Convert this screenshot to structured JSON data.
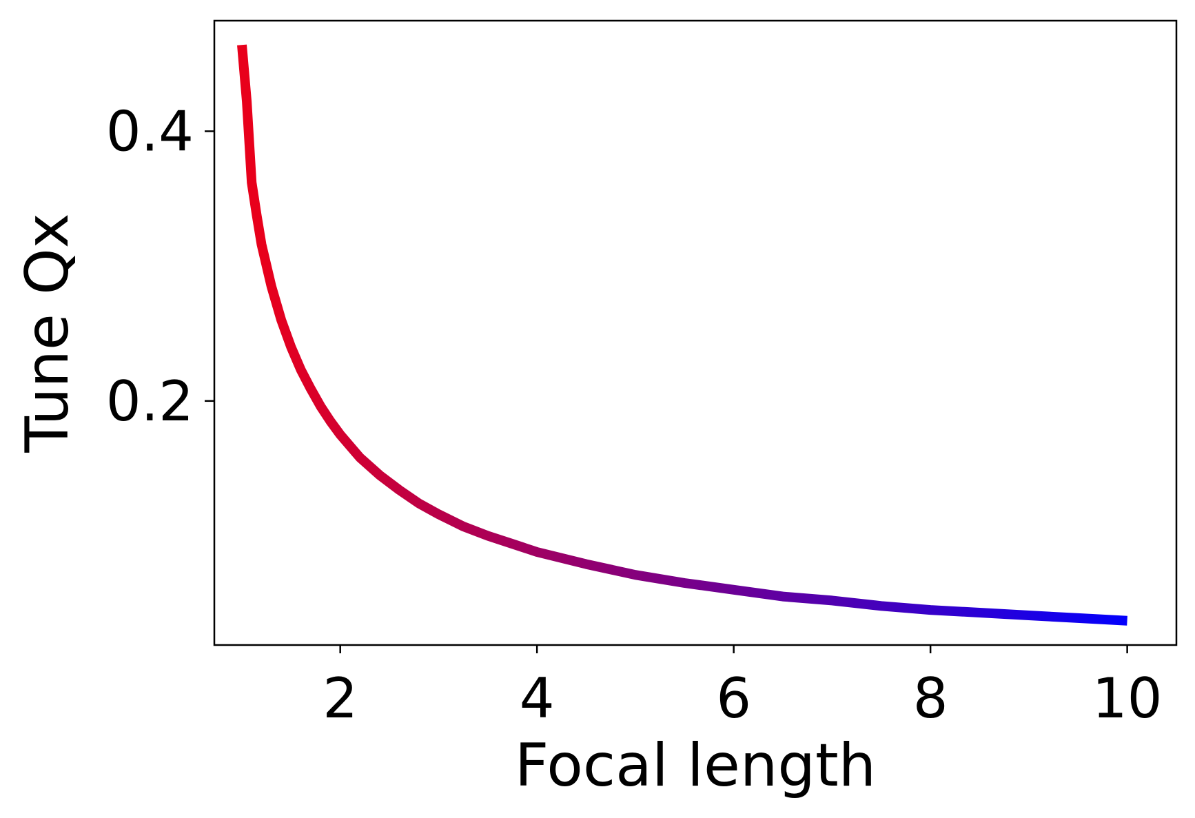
{
  "chart_data": {
    "type": "line",
    "title": "",
    "xlabel": "Focal length",
    "ylabel": "Tune Qx",
    "xlim": [
      0.72,
      10.5
    ],
    "ylim": [
      0.019,
      0.482
    ],
    "xticks": [
      2,
      4,
      6,
      8,
      10
    ],
    "xtick_labels": [
      "2",
      "4",
      "6",
      "8",
      "10"
    ],
    "yticks": [
      0.2,
      0.4
    ],
    "ytick_labels": [
      "0.2",
      "0.4"
    ],
    "grid": false,
    "legend": "none",
    "line_color_gradient": {
      "start": "#e8001b",
      "end": "#0000ff"
    },
    "series": [
      {
        "x": [
          1.0,
          1.05,
          1.1,
          1.15,
          1.2,
          1.3,
          1.4,
          1.5,
          1.6,
          1.7,
          1.8,
          1.9,
          2.0,
          2.2,
          2.4,
          2.6,
          2.8,
          3.0,
          3.25,
          3.5,
          3.75,
          4.0,
          4.5,
          5.0,
          5.5,
          6.0,
          6.5,
          7.0,
          7.5,
          8.0,
          8.5,
          9.0,
          9.5,
          10.0
        ],
        "y": [
          0.464,
          0.422,
          0.362,
          0.338,
          0.316,
          0.285,
          0.26,
          0.24,
          0.223,
          0.209,
          0.196,
          0.185,
          0.175,
          0.158,
          0.145,
          0.134,
          0.124,
          0.116,
          0.107,
          0.1,
          0.094,
          0.088,
          0.079,
          0.071,
          0.065,
          0.06,
          0.055,
          0.052,
          0.048,
          0.045,
          0.043,
          0.041,
          0.039,
          0.037
        ]
      }
    ]
  }
}
